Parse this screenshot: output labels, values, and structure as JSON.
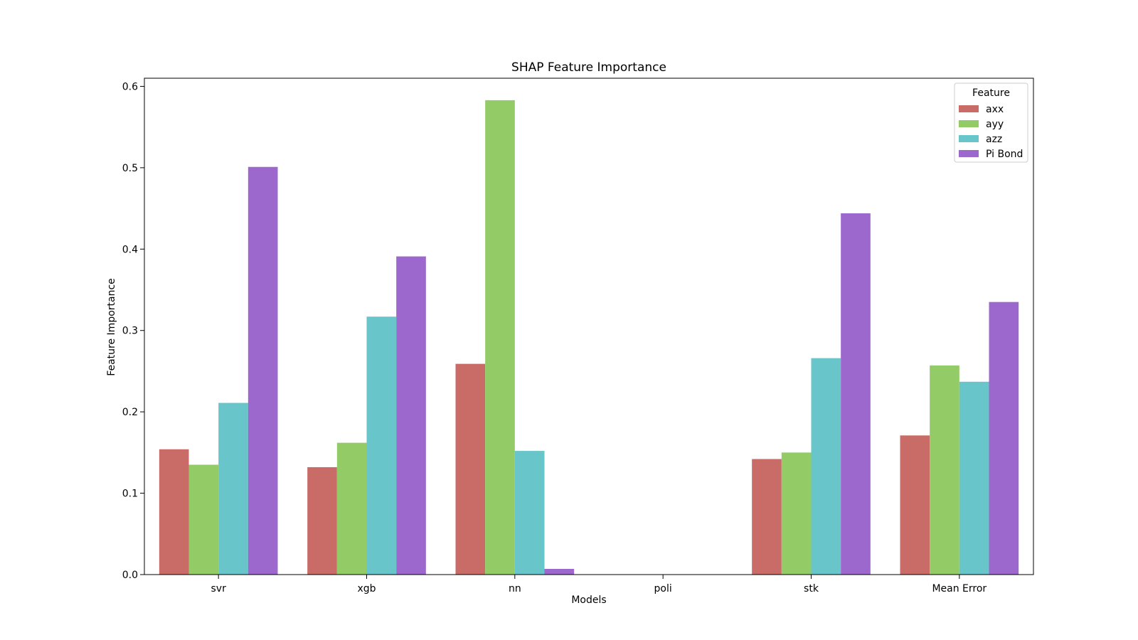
{
  "chart_data": {
    "type": "bar",
    "title": "SHAP Feature Importance",
    "xlabel": "Models",
    "ylabel": "Feature Importance",
    "categories": [
      "svr",
      "xgb",
      "nn",
      "poli",
      "stk",
      "Mean Error"
    ],
    "ylim": [
      0,
      0.61
    ],
    "yticks": [
      0.0,
      0.1,
      0.2,
      0.3,
      0.4,
      0.5,
      0.6
    ],
    "ytick_labels": [
      "0.0",
      "0.1",
      "0.2",
      "0.3",
      "0.4",
      "0.5",
      "0.6"
    ],
    "grid": false,
    "legend": {
      "title": "Feature",
      "position": "top-right"
    },
    "series": [
      {
        "name": "axx",
        "color": "#c96b66",
        "values": [
          0.154,
          0.132,
          0.259,
          0.0,
          0.142,
          0.171
        ]
      },
      {
        "name": "ayy",
        "color": "#93cb66",
        "values": [
          0.135,
          0.162,
          0.583,
          0.0,
          0.15,
          0.257
        ]
      },
      {
        "name": "azz",
        "color": "#68c5ca",
        "values": [
          0.211,
          0.317,
          0.152,
          0.0,
          0.266,
          0.237
        ]
      },
      {
        "name": "Pi Bond",
        "color": "#9d68cd",
        "values": [
          0.501,
          0.391,
          0.007,
          0.0,
          0.444,
          0.335
        ]
      }
    ]
  }
}
